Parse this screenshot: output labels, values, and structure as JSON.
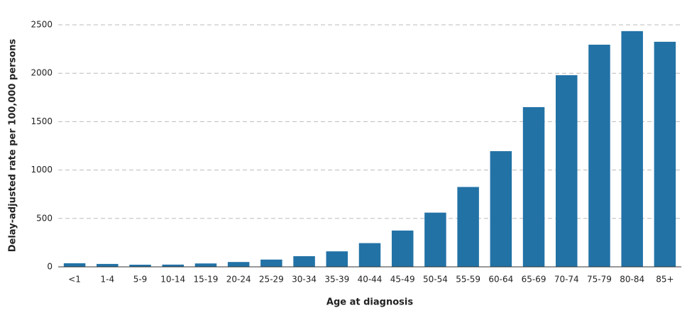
{
  "chart_data": {
    "type": "bar",
    "x_label": "Age at diagnosis",
    "y_label": "Delay-adjusted rate per 100,000 persons",
    "categories": [
      "<1",
      "1-4",
      "5-9",
      "10-14",
      "15-19",
      "20-24",
      "25-29",
      "30-34",
      "35-39",
      "40-44",
      "45-49",
      "50-54",
      "55-59",
      "60-64",
      "65-69",
      "70-74",
      "75-79",
      "80-84",
      "85+"
    ],
    "values": [
      37,
      30,
      22,
      23,
      35,
      50,
      75,
      110,
      160,
      245,
      375,
      560,
      825,
      1195,
      1650,
      1980,
      2295,
      2435,
      2325
    ],
    "color": "#2272a6",
    "ylim": [
      0,
      2500
    ],
    "yticks": [
      0,
      500,
      1000,
      1500,
      2000,
      2500
    ],
    "grid": true
  }
}
